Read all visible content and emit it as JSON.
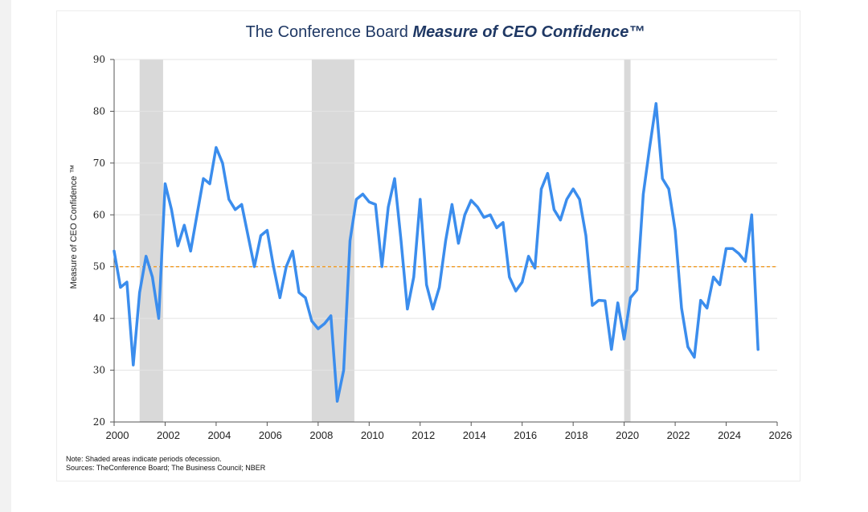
{
  "chart_data": {
    "type": "line",
    "title_prefix": "The Conference Board ",
    "title_emphasis": "Measure of CEO Confidence™",
    "ylabel": "Measure of CEO Confidence ™",
    "xlabel": "",
    "xlim": [
      2000,
      2026
    ],
    "ylim": [
      20,
      90
    ],
    "x_ticks": [
      2000,
      2002,
      2004,
      2006,
      2008,
      2010,
      2012,
      2014,
      2016,
      2018,
      2020,
      2022,
      2024,
      2026
    ],
    "y_ticks": [
      20,
      30,
      40,
      50,
      60,
      70,
      80,
      90
    ],
    "reference_line": {
      "y": 50,
      "color": "#f0a030",
      "style": "dashed"
    },
    "recessions": [
      {
        "start": 2001.0,
        "end": 2001.92
      },
      {
        "start": 2007.75,
        "end": 2009.42
      },
      {
        "start": 2020.0,
        "end": 2020.25
      }
    ],
    "series": [
      {
        "color": "#3b8ded",
        "x": [
          2000.0,
          2000.25,
          2000.5,
          2000.75,
          2001.0,
          2001.25,
          2001.5,
          2001.75,
          2002.0,
          2002.25,
          2002.5,
          2002.75,
          2003.0,
          2003.25,
          2003.5,
          2003.75,
          2004.0,
          2004.25,
          2004.5,
          2004.75,
          2005.0,
          2005.25,
          2005.5,
          2005.75,
          2006.0,
          2006.25,
          2006.5,
          2006.75,
          2007.0,
          2007.25,
          2007.5,
          2007.75,
          2008.0,
          2008.25,
          2008.5,
          2008.75,
          2009.0,
          2009.25,
          2009.5,
          2009.75,
          2010.0,
          2010.25,
          2010.5,
          2010.75,
          2011.0,
          2011.25,
          2011.5,
          2011.75,
          2012.0,
          2012.25,
          2012.5,
          2012.75,
          2013.0,
          2013.25,
          2013.5,
          2013.75,
          2014.0,
          2014.25,
          2014.5,
          2014.75,
          2015.0,
          2015.25,
          2015.5,
          2015.75,
          2016.0,
          2016.25,
          2016.5,
          2016.75,
          2017.0,
          2017.25,
          2017.5,
          2017.75,
          2018.0,
          2018.25,
          2018.5,
          2018.75,
          2019.0,
          2019.25,
          2019.5,
          2019.75,
          2020.0,
          2020.25,
          2020.5,
          2020.75,
          2021.0,
          2021.25,
          2021.5,
          2021.75,
          2022.0,
          2022.25,
          2022.5,
          2022.75,
          2023.0,
          2023.25,
          2023.5,
          2023.75,
          2024.0,
          2024.25,
          2024.5,
          2024.75,
          2025.0,
          2025.25
        ],
        "values": [
          53,
          46,
          47,
          31,
          45,
          52,
          48,
          40,
          66,
          61,
          54,
          58,
          53,
          60,
          67,
          66,
          73,
          70,
          63,
          61,
          62,
          56,
          50,
          56,
          57,
          50,
          44,
          50,
          53,
          45,
          44,
          39.5,
          38,
          39,
          40.5,
          24,
          30,
          55,
          63,
          64,
          62.5,
          62,
          50,
          61.5,
          67,
          55,
          41.8,
          48,
          63,
          46.5,
          41.8,
          46,
          55,
          62,
          54.5,
          60,
          62.8,
          61.5,
          59.5,
          60,
          57.5,
          58.5,
          48,
          45.3,
          47,
          52,
          49.7,
          65,
          68,
          61,
          59,
          63,
          65,
          63,
          56,
          42.5,
          43.5,
          43.4,
          34,
          43,
          36,
          44,
          45.5,
          64,
          73,
          81.5,
          67,
          65,
          57,
          42,
          34.5,
          32.5,
          43.5,
          42,
          48,
          46.5,
          53.5,
          53.5,
          52.5,
          51,
          60,
          34
        ]
      }
    ]
  },
  "note_lines": [
    "Note: Shaded areas indicate periods ofecession.",
    "Sources: TheConference Board; The Business Council; NBER"
  ]
}
